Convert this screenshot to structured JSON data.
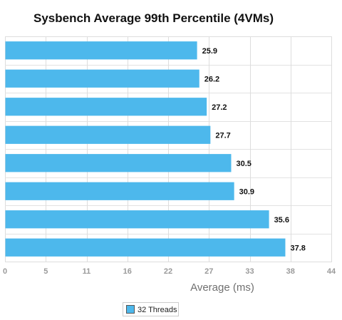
{
  "chart_data": {
    "type": "bar",
    "orientation": "horizontal",
    "title": "Sysbench Average 99th Percentile (4VMs)",
    "xlabel": "Average (ms)",
    "ylabel": "",
    "categories": [
      "",
      "",
      "",
      "",
      "",
      "",
      "",
      ""
    ],
    "series": [
      {
        "name": "32 Threads",
        "values": [
          25.9,
          26.2,
          27.2,
          27.7,
          30.5,
          30.9,
          35.6,
          37.8
        ],
        "color": "#4db8ec"
      }
    ],
    "x_ticks": [
      0,
      5.5,
      11,
      16.5,
      22,
      27.5,
      33,
      38.5,
      44
    ],
    "x_tick_labels": [
      "0",
      "5",
      "11",
      "16",
      "22",
      "27",
      "33",
      "38",
      "44"
    ],
    "xlim": [
      0,
      44
    ],
    "grid": true,
    "legend_position": "bottom-center",
    "data_labels": [
      "25.9",
      "26.2",
      "27.2",
      "27.7",
      "30.5",
      "30.9",
      "35.6",
      "37.8"
    ]
  }
}
